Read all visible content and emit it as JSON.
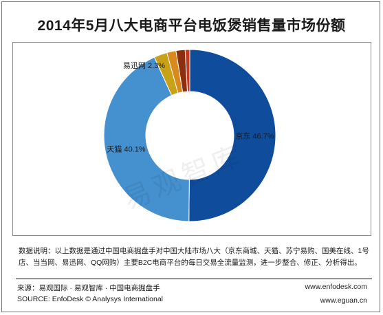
{
  "title": "2014年5月八大电商平台电饭煲销售量市场份额",
  "chart_data": {
    "type": "pie",
    "variant": "donut",
    "title": "2014年5月八大电商平台电饭煲销售量市场份额",
    "slices": [
      {
        "label": "京东",
        "value": 46.7,
        "label_text": "京东 46.7%",
        "color": "#0f4c9c"
      },
      {
        "label": "天猫",
        "value": 40.1,
        "label_text": "天猫 40.1%",
        "color": "#4591cf"
      },
      {
        "label": "易迅网",
        "value": 2.3,
        "label_text": "易迅网 2.3%",
        "color": "#c9a117"
      },
      {
        "label": "",
        "value": 1.6,
        "label_text": "",
        "color": "#d98a1e"
      },
      {
        "label": "",
        "value": 1.6,
        "label_text": "",
        "color": "#8c2f10"
      },
      {
        "label": "",
        "value": 0.8,
        "label_text": "",
        "color": "#c23a20"
      }
    ]
  },
  "watermark": "易观智库",
  "note": "数据说明：以上数据是通过中国电商掘盘手对中国大陆市场八大（京东商城、天猫、苏宁易购、国美在线、1号店、当当网、易迅网、QQ网购）主要B2C电商平台的每日交易全流量监测，进一步整合、修正、分析得出。",
  "source_cn": "来源：易观国际 · 易观智库 · 中国电商掘盘手",
  "source_en": "SOURCE: EnfoDesk © Analysys International",
  "url1": "www.enfodesk.com",
  "url2": "www.eguan.cn"
}
